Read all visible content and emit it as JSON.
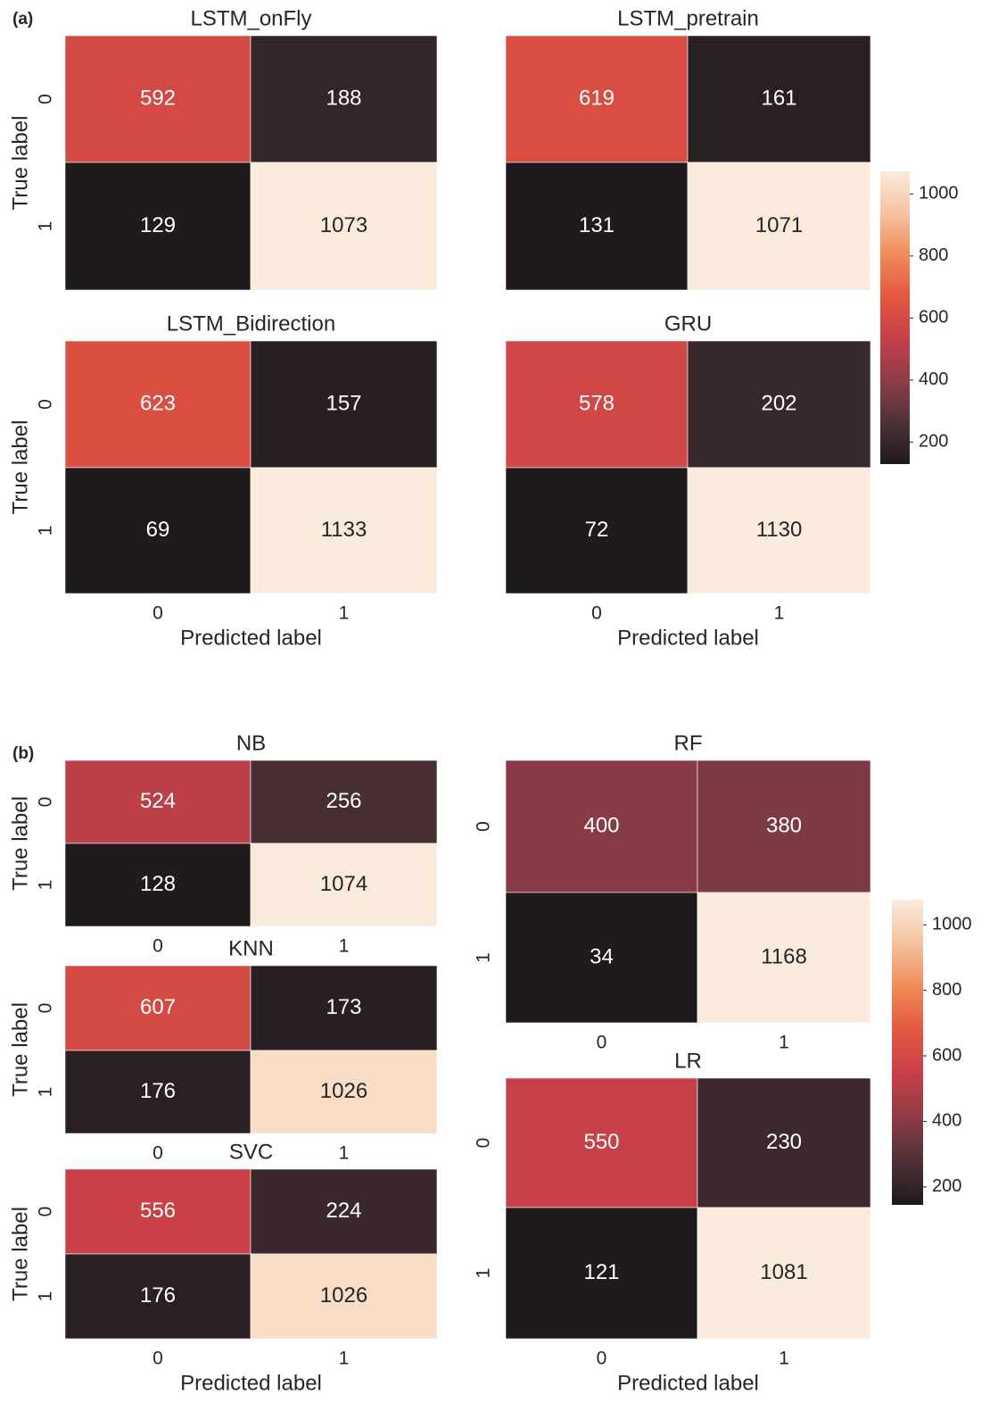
{
  "panel_labels": [
    "(a)",
    "(b)"
  ],
  "colormap": [
    "#1f1a1c",
    "#4e3237",
    "#8d3c47",
    "#c63f48",
    "#e4573f",
    "#ef8a57",
    "#f5c3a0",
    "#faebdd"
  ],
  "chart_data": [
    {
      "type": "heatmap",
      "title": "LSTM_onFly",
      "ylabel": "True label",
      "y_categories": [
        "0",
        "1"
      ],
      "values": [
        [
          592,
          188
        ],
        [
          129,
          1073
        ]
      ],
      "zlim": [
        129,
        1073
      ]
    },
    {
      "type": "heatmap",
      "title": "LSTM_pretrain",
      "values": [
        [
          619,
          161
        ],
        [
          131,
          1071
        ]
      ],
      "zlim": [
        129,
        1073
      ]
    },
    {
      "type": "heatmap",
      "title": "LSTM_Bidirection",
      "ylabel": "True label",
      "y_categories": [
        "0",
        "1"
      ],
      "x_categories": [
        "0",
        "1"
      ],
      "xlabel": "Predicted label",
      "values": [
        [
          623,
          157
        ],
        [
          69,
          1133
        ]
      ],
      "zlim": [
        129,
        1073
      ]
    },
    {
      "type": "heatmap",
      "title": "GRU",
      "x_categories": [
        "0",
        "1"
      ],
      "xlabel": "Predicted label",
      "values": [
        [
          578,
          202
        ],
        [
          72,
          1130
        ]
      ],
      "zlim": [
        129,
        1073
      ]
    },
    {
      "type": "colorbar",
      "zlim": [
        129,
        1073
      ],
      "zticks": [
        200,
        400,
        600,
        800,
        1000
      ]
    },
    {
      "type": "heatmap",
      "title": "NB",
      "ylabel": "True label",
      "y_categories": [
        "0",
        "1"
      ],
      "x_categories": [
        "0",
        "1"
      ],
      "values": [
        [
          524,
          256
        ],
        [
          128,
          1074
        ]
      ],
      "zlim": [
        145,
        1077
      ]
    },
    {
      "type": "heatmap",
      "title": "KNN",
      "ylabel": "True label",
      "y_categories": [
        "0",
        "1"
      ],
      "x_categories": [
        "0",
        "1"
      ],
      "values": [
        [
          607,
          173
        ],
        [
          176,
          1026
        ]
      ],
      "zlim": [
        145,
        1077
      ]
    },
    {
      "type": "heatmap",
      "title": "SVC",
      "ylabel": "True label",
      "y_categories": [
        "0",
        "1"
      ],
      "x_categories": [
        "0",
        "1"
      ],
      "xlabel": "Predicted label",
      "values": [
        [
          556,
          224
        ],
        [
          176,
          1026
        ]
      ],
      "zlim": [
        145,
        1077
      ]
    },
    {
      "type": "heatmap",
      "title": "RF",
      "y_categories": [
        "0",
        "1"
      ],
      "x_categories": [
        "0",
        "1"
      ],
      "values": [
        [
          400,
          380
        ],
        [
          34,
          1168
        ]
      ],
      "zlim": [
        145,
        1077
      ]
    },
    {
      "type": "heatmap",
      "title": "LR",
      "y_categories": [
        "0",
        "1"
      ],
      "x_categories": [
        "0",
        "1"
      ],
      "xlabel": "Predicted label",
      "values": [
        [
          550,
          230
        ],
        [
          121,
          1081
        ]
      ],
      "zlim": [
        145,
        1077
      ]
    },
    {
      "type": "colorbar",
      "zlim": [
        145,
        1077
      ],
      "zticks": [
        200,
        400,
        600,
        800,
        1000
      ]
    }
  ]
}
